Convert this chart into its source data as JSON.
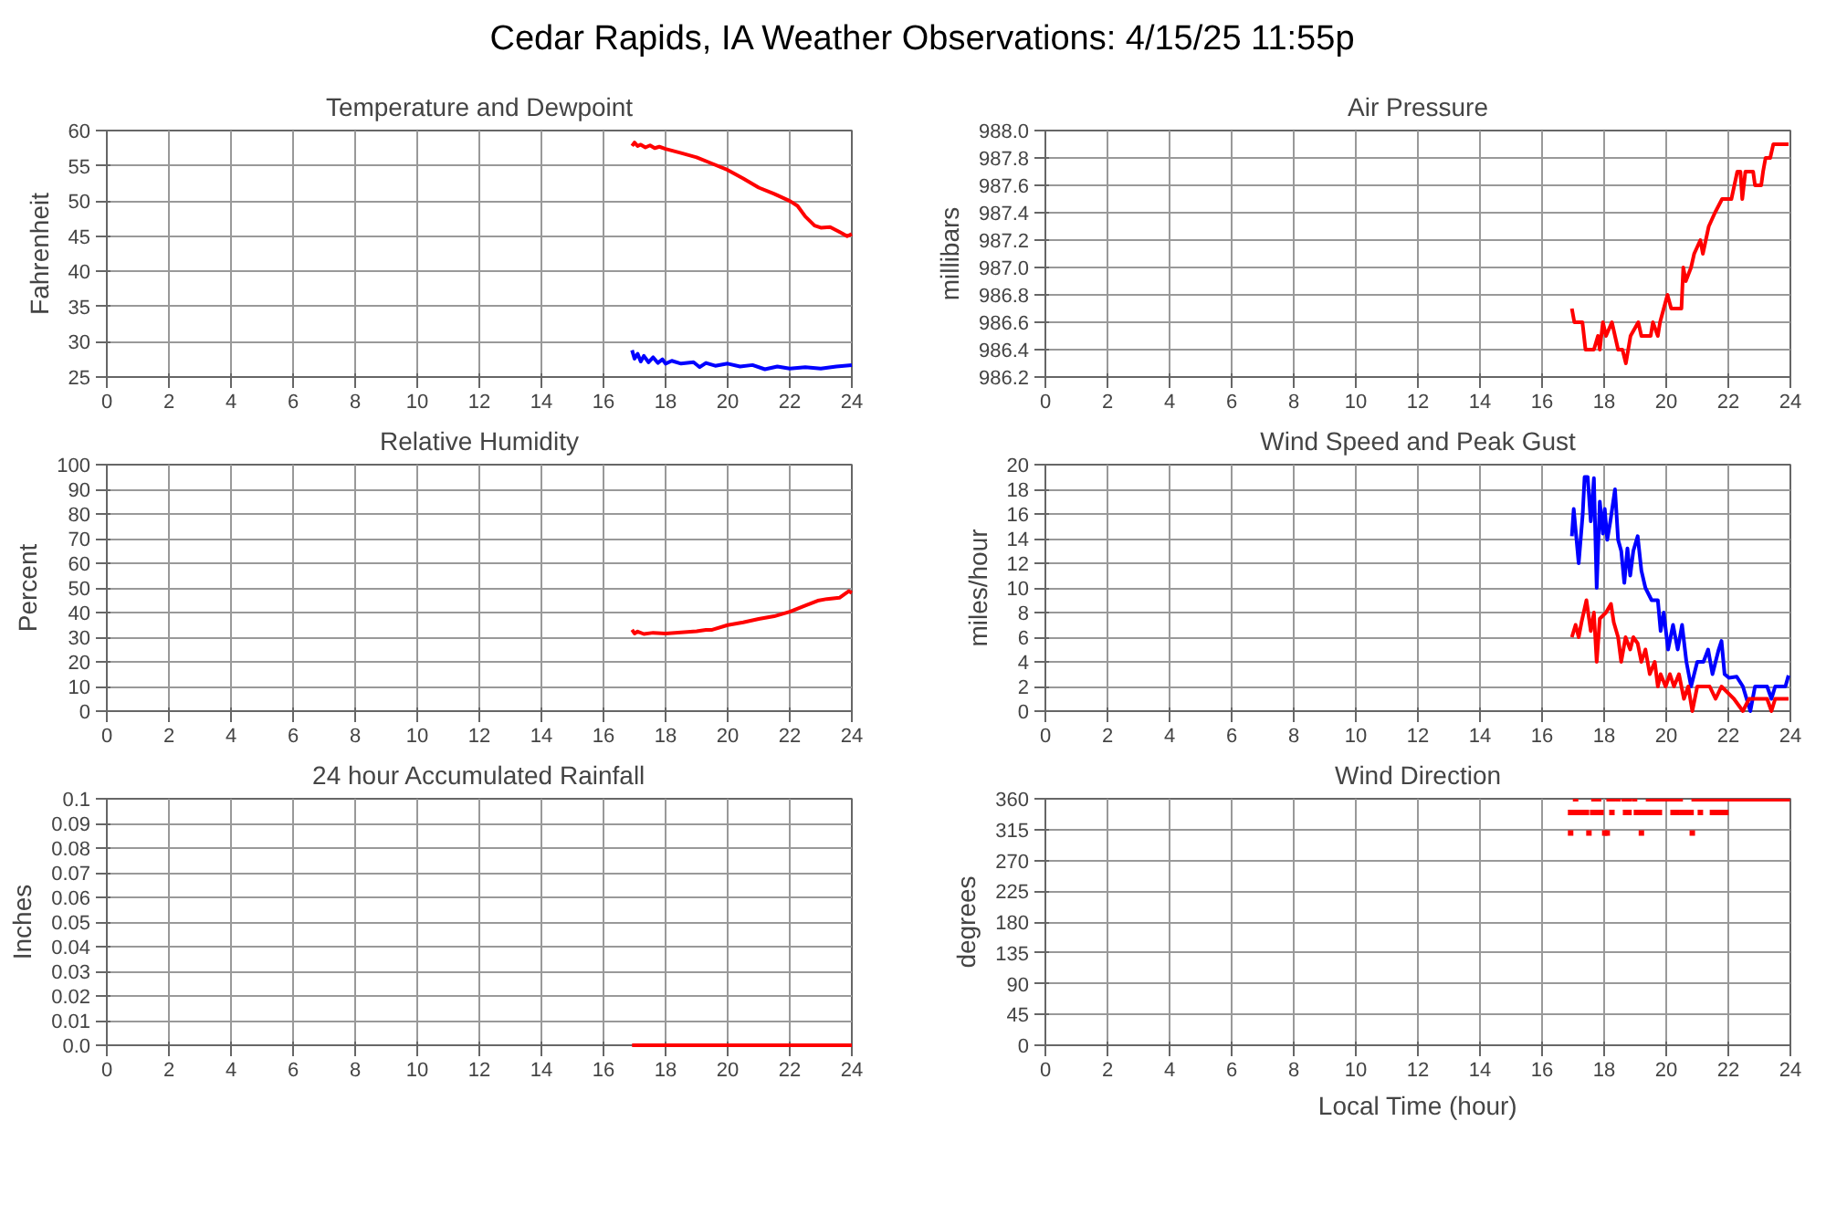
{
  "chart_data": [
    {
      "type": "other",
      "title": "Cedar Rapids, IA Weather Observations: 4/15/25 11:55p"
    },
    {
      "type": "line",
      "title": "Temperature and Dewpoint",
      "ylabel": "Fahrenheit",
      "xlim": [
        0,
        24
      ],
      "ylim": [
        25,
        60
      ],
      "xticks": [
        0,
        2,
        4,
        6,
        8,
        10,
        12,
        14,
        16,
        18,
        20,
        22,
        24
      ],
      "yticks": [
        25,
        30,
        35,
        40,
        45,
        50,
        55,
        60
      ],
      "grid": true,
      "series": [
        {
          "color": "#ff0000",
          "x": [
            16.92,
            17.0,
            17.1,
            17.2,
            17.35,
            17.5,
            17.65,
            17.8,
            18.0,
            18.5,
            19.0,
            19.5,
            20.0,
            20.5,
            21.0,
            21.5,
            22.0,
            22.25,
            22.5,
            22.8,
            23.0,
            23.3,
            23.6,
            23.85,
            24.0
          ],
          "values": [
            57.8,
            58.3,
            57.8,
            58.0,
            57.6,
            57.9,
            57.5,
            57.7,
            57.4,
            56.8,
            56.2,
            55.3,
            54.4,
            53.2,
            51.9,
            51.0,
            50.0,
            49.3,
            47.8,
            46.5,
            46.2,
            46.3,
            45.6,
            45.0,
            45.3
          ]
        },
        {
          "color": "#0000ff",
          "x": [
            16.92,
            17.0,
            17.1,
            17.2,
            17.3,
            17.45,
            17.6,
            17.75,
            17.9,
            18.0,
            18.2,
            18.5,
            18.9,
            19.1,
            19.3,
            19.6,
            20.0,
            20.4,
            20.8,
            21.2,
            21.6,
            22.0,
            22.5,
            23.0,
            23.5,
            24.0
          ],
          "values": [
            28.8,
            27.6,
            28.3,
            27.2,
            28.0,
            27.1,
            27.8,
            27.0,
            27.5,
            26.9,
            27.3,
            26.9,
            27.1,
            26.4,
            27.0,
            26.6,
            26.9,
            26.5,
            26.7,
            26.1,
            26.5,
            26.2,
            26.4,
            26.2,
            26.5,
            26.7
          ]
        }
      ]
    },
    {
      "type": "line",
      "title": "Air Pressure",
      "ylabel": "millibars",
      "xlim": [
        0,
        24
      ],
      "ylim": [
        986.2,
        988.0
      ],
      "xticks": [
        0,
        2,
        4,
        6,
        8,
        10,
        12,
        14,
        16,
        18,
        20,
        22,
        24
      ],
      "yticks": [
        {
          "value": 986.2,
          "label": "986.2"
        },
        {
          "value": 986.4,
          "label": "986.4"
        },
        {
          "value": 986.6,
          "label": "986.6"
        },
        {
          "value": 986.8,
          "label": "986.8"
        },
        {
          "value": 987.0,
          "label": "987.0"
        },
        {
          "value": 987.2,
          "label": "987.2"
        },
        {
          "value": 987.4,
          "label": "987.4"
        },
        {
          "value": 987.6,
          "label": "987.6"
        },
        {
          "value": 987.8,
          "label": "987.8"
        },
        {
          "value": 988.0,
          "label": "988.0"
        }
      ],
      "grid": true,
      "series": [
        {
          "color": "#ff0000",
          "x": [
            16.96,
            17.04,
            17.3,
            17.4,
            17.67,
            17.8,
            17.86,
            17.96,
            18.06,
            18.25,
            18.45,
            18.59,
            18.7,
            18.85,
            19.1,
            19.2,
            19.5,
            19.57,
            19.73,
            19.8,
            19.92,
            20.04,
            20.16,
            20.49,
            20.55,
            20.63,
            20.8,
            20.9,
            21.1,
            21.18,
            21.37,
            21.57,
            21.8,
            21.94,
            22.1,
            22.29,
            22.39,
            22.45,
            22.55,
            22.8,
            22.86,
            23.06,
            23.12,
            23.2,
            23.35,
            23.45,
            23.94
          ],
          "values": [
            986.7,
            986.6,
            986.6,
            986.4,
            986.4,
            986.5,
            986.4,
            986.6,
            986.5,
            986.6,
            986.4,
            986.4,
            986.3,
            986.5,
            986.6,
            986.5,
            986.5,
            986.6,
            986.5,
            986.6,
            986.7,
            986.8,
            986.7,
            986.7,
            987.0,
            986.9,
            987.0,
            987.1,
            987.2,
            987.1,
            987.3,
            987.4,
            987.5,
            987.5,
            987.5,
            987.7,
            987.7,
            987.5,
            987.7,
            987.7,
            987.6,
            987.6,
            987.7,
            987.8,
            987.8,
            987.9,
            987.9
          ]
        }
      ]
    },
    {
      "type": "line",
      "title": "Relative Humidity",
      "ylabel": "Percent",
      "xlim": [
        0,
        24
      ],
      "ylim": [
        0,
        100
      ],
      "xticks": [
        0,
        2,
        4,
        6,
        8,
        10,
        12,
        14,
        16,
        18,
        20,
        22,
        24
      ],
      "yticks": [
        0,
        10,
        20,
        30,
        40,
        50,
        60,
        70,
        80,
        90,
        100
      ],
      "grid": true,
      "series": [
        {
          "color": "#ff0000",
          "x": [
            16.92,
            17.0,
            17.1,
            17.3,
            17.6,
            18.0,
            18.5,
            19.0,
            19.3,
            19.5,
            20.0,
            20.5,
            21.0,
            21.5,
            22.0,
            22.5,
            22.9,
            23.2,
            23.6,
            23.9,
            24.0
          ],
          "values": [
            33,
            31.5,
            32.3,
            31.3,
            31.8,
            31.5,
            31.9,
            32.4,
            33,
            33,
            34.9,
            36,
            37.4,
            38.5,
            40.3,
            42.8,
            44.8,
            45.5,
            46,
            48.7,
            48
          ]
        }
      ]
    },
    {
      "type": "line",
      "title": "Wind Speed and Peak Gust",
      "ylabel": "miles/hour",
      "xlim": [
        0,
        24
      ],
      "ylim": [
        0,
        20
      ],
      "xticks": [
        0,
        2,
        4,
        6,
        8,
        10,
        12,
        14,
        16,
        18,
        20,
        22,
        24
      ],
      "yticks": [
        0,
        2,
        4,
        6,
        8,
        10,
        12,
        14,
        16,
        18,
        20
      ],
      "grid": true,
      "series": [
        {
          "color": "#0000ff",
          "x": [
            16.96,
            17.02,
            17.18,
            17.31,
            17.37,
            17.47,
            17.57,
            17.67,
            17.76,
            17.86,
            17.96,
            18.02,
            18.1,
            18.2,
            18.35,
            18.45,
            18.55,
            18.65,
            18.75,
            18.84,
            18.94,
            19.08,
            19.2,
            19.33,
            19.53,
            19.73,
            19.82,
            19.92,
            20.06,
            20.22,
            20.37,
            20.51,
            20.65,
            20.8,
            21.0,
            21.2,
            21.35,
            21.49,
            21.69,
            21.78,
            21.88,
            22.02,
            22.27,
            22.47,
            22.71,
            22.86,
            23.25,
            23.39,
            23.51,
            23.84,
            23.94
          ],
          "values": [
            14.2,
            16.4,
            12,
            16,
            19,
            19,
            15.4,
            18.9,
            10,
            17,
            14.4,
            16.4,
            13.9,
            15.4,
            18,
            13.9,
            13,
            10.4,
            13.2,
            11,
            13,
            14.2,
            11.4,
            10,
            9,
            9,
            6.5,
            8,
            5,
            7,
            5,
            7,
            4,
            2,
            4,
            4,
            5,
            3,
            5,
            5.7,
            3,
            2.7,
            2.8,
            2,
            0,
            2,
            2,
            1,
            2,
            2,
            2.9
          ]
        },
        {
          "color": "#ff0000",
          "x": [
            16.96,
            17.08,
            17.18,
            17.27,
            17.43,
            17.57,
            17.67,
            17.76,
            17.86,
            18.06,
            18.22,
            18.31,
            18.45,
            18.55,
            18.69,
            18.84,
            18.94,
            19.08,
            19.2,
            19.33,
            19.47,
            19.63,
            19.73,
            19.82,
            19.98,
            20.12,
            20.25,
            20.41,
            20.57,
            20.71,
            20.84,
            21.0,
            21.4,
            21.59,
            21.78,
            22.18,
            22.47,
            22.67,
            22.96,
            23.25,
            23.39,
            23.51,
            23.94
          ],
          "values": [
            6,
            7,
            6,
            7.2,
            9,
            6.5,
            8,
            4,
            7.5,
            8,
            8.7,
            7.2,
            6,
            4,
            6,
            5,
            6,
            5.5,
            4,
            5,
            3,
            4,
            2,
            3,
            2,
            3,
            2,
            3,
            1,
            2,
            0,
            2,
            2,
            1,
            2,
            1,
            0,
            1,
            1,
            1,
            0,
            1,
            1
          ]
        }
      ]
    },
    {
      "type": "line",
      "title": "24 hour Accumulated Rainfall",
      "ylabel": "Inches",
      "xlim": [
        0,
        24
      ],
      "ylim": [
        0,
        0.1
      ],
      "xticks": [
        0,
        2,
        4,
        6,
        8,
        10,
        12,
        14,
        16,
        18,
        20,
        22,
        24
      ],
      "yticks": [
        {
          "value": 0,
          "label": "0.0"
        },
        0.01,
        0.02,
        0.03,
        0.04,
        0.05,
        0.06,
        0.07,
        0.08,
        0.09,
        0.1
      ],
      "grid": true,
      "series": [
        {
          "color": "#ff0000",
          "x": [
            16.92,
            24.0
          ],
          "values": [
            0,
            0
          ]
        }
      ]
    },
    {
      "type": "scatter",
      "title": "Wind Direction",
      "ylabel": "degrees",
      "xlabel": "Local Time (hour)",
      "marker": "square",
      "xlim": [
        0,
        24
      ],
      "ylim": [
        0,
        360
      ],
      "xticks": [
        0,
        2,
        4,
        6,
        8,
        10,
        12,
        14,
        16,
        18,
        20,
        22,
        24
      ],
      "yticks": [
        0,
        45,
        90,
        135,
        180,
        225,
        270,
        315,
        360
      ],
      "grid": true,
      "series": [
        {
          "color": "#ff0000",
          "x": [
            17.08,
            17.67,
            17.82,
            18.16,
            18.29,
            18.45,
            18.65,
            18.8,
            18.98,
            19.43,
            19.59,
            19.73,
            19.86,
            20.02,
            20.18,
            20.31,
            20.45,
            20.9,
            21.0,
            21.1,
            21.2,
            21.3,
            21.4,
            21.5,
            21.6,
            21.7,
            21.8,
            21.9,
            22.0,
            22.1,
            22.2,
            22.3,
            22.4,
            22.5,
            22.6,
            22.7,
            22.8,
            22.9,
            23.0,
            23.1,
            23.2,
            23.3,
            23.4,
            23.5,
            23.6,
            23.7,
            23.8,
            23.9,
            16.92,
            17.04,
            17.18,
            17.31,
            17.43,
            17.63,
            17.76,
            17.9,
            18.25,
            18.69,
            18.8,
            19.04,
            19.2,
            19.33,
            19.47,
            19.63,
            19.78,
            20.22,
            20.35,
            20.51,
            20.65,
            20.8,
            21.1,
            21.49,
            21.63,
            21.78,
            21.92,
            16.92,
            17.51,
            18.02,
            18.1,
            19.2,
            20.84
          ],
          "values": [
            360,
            360,
            360,
            360,
            360,
            360,
            360,
            360,
            360,
            360,
            360,
            360,
            360,
            360,
            360,
            360,
            360,
            360,
            360,
            360,
            360,
            360,
            360,
            360,
            360,
            360,
            360,
            360,
            360,
            360,
            360,
            360,
            360,
            360,
            360,
            360,
            360,
            360,
            360,
            360,
            360,
            360,
            360,
            360,
            360,
            360,
            360,
            360,
            340,
            340,
            340,
            340,
            340,
            340,
            340,
            340,
            340,
            340,
            340,
            340,
            340,
            340,
            340,
            340,
            340,
            340,
            340,
            340,
            340,
            340,
            340,
            340,
            340,
            340,
            340,
            310,
            310,
            310,
            310,
            310,
            310
          ]
        }
      ]
    }
  ]
}
